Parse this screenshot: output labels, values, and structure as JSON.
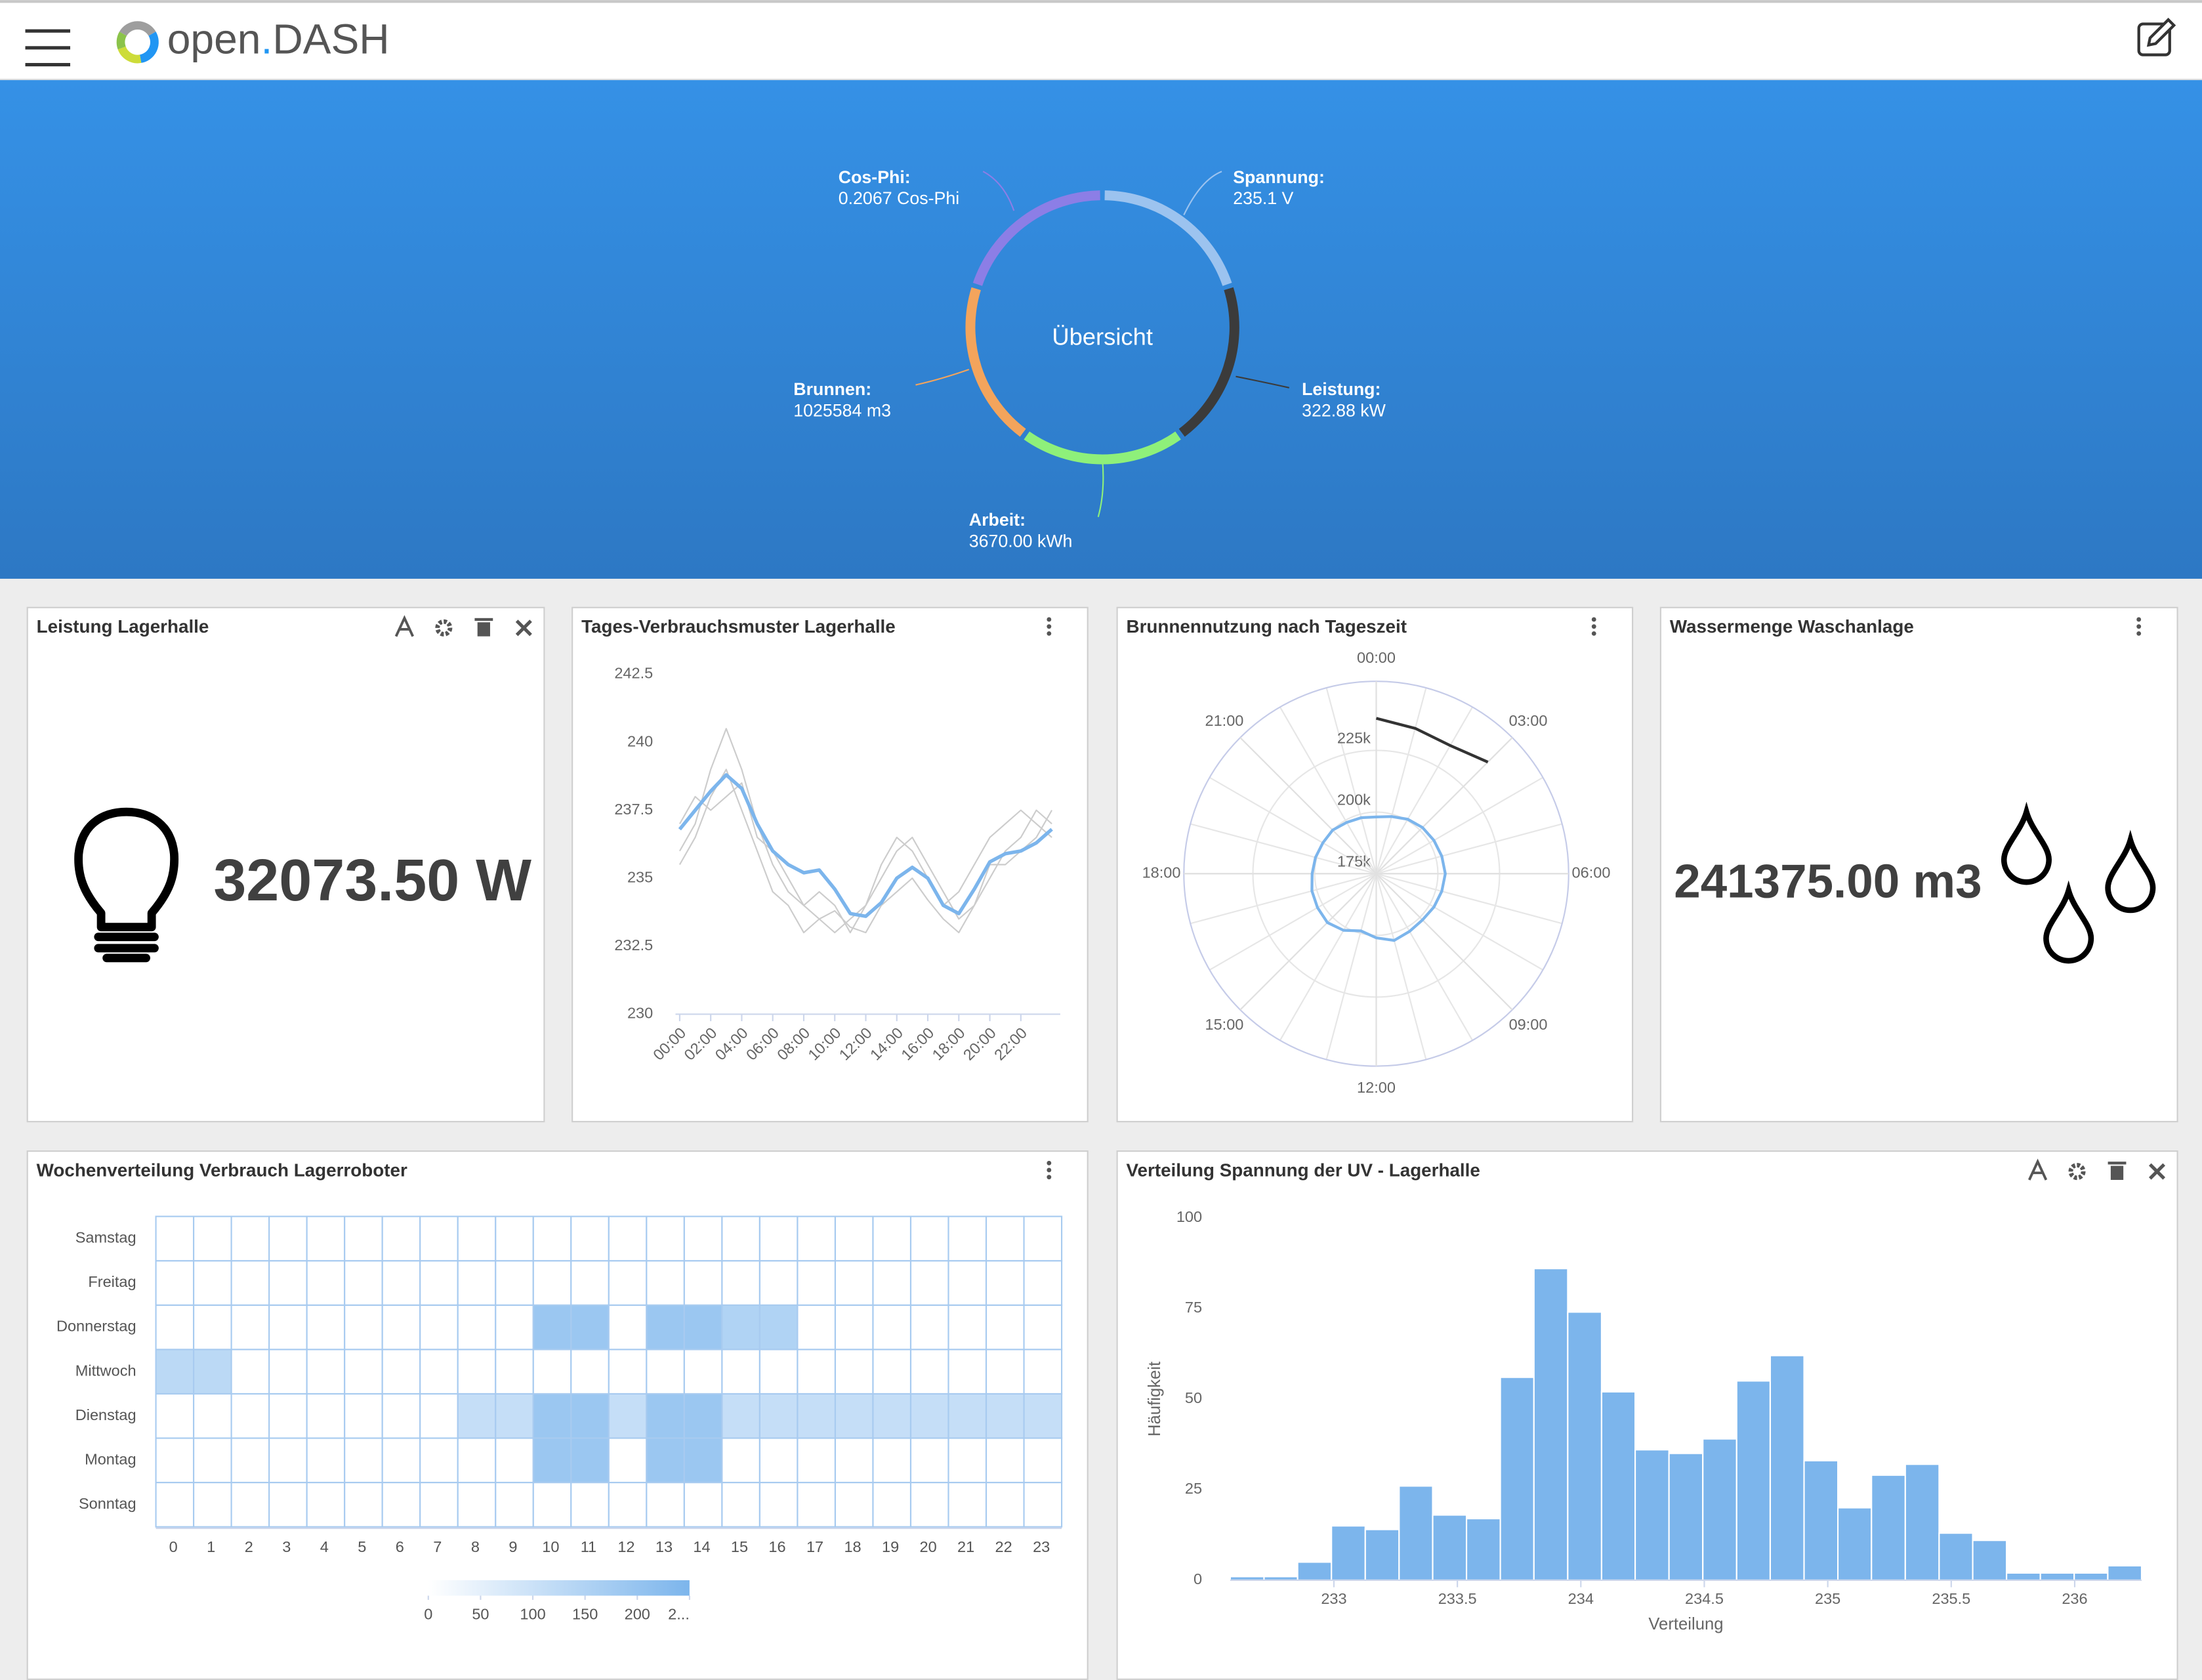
{
  "header": {
    "brand": {
      "name": "open",
      "dot": ".",
      "suffix": "DASH"
    }
  },
  "overview": {
    "title": "Übersicht",
    "items": [
      {
        "label": "Spannung:",
        "value": "235.1 V",
        "color": "#9cc3ef"
      },
      {
        "label": "Leistung:",
        "value": "322.88 kW",
        "color": "#3b3b3b"
      },
      {
        "label": "Arbeit:",
        "value": "3670.00 kWh",
        "color": "#8ef07a"
      },
      {
        "label": "Brunnen:",
        "value": "1025584 m3",
        "color": "#f3a45c"
      },
      {
        "label": "Cos-Phi:",
        "value": "0.2067 Cos-Phi",
        "color": "#8c7ee6"
      }
    ]
  },
  "widgets": [
    {
      "title": "Leistung Lagerhalle",
      "value": "32073.50 W"
    },
    {
      "title": "Tages-Verbrauchsmuster Lagerhalle",
      "chart": {
        "type": "line",
        "x": [
          0,
          1,
          2,
          3,
          4,
          5,
          6,
          7,
          8,
          9,
          10,
          11,
          12,
          13,
          14,
          15,
          16,
          17,
          18,
          19,
          20,
          21,
          22,
          23,
          24
        ],
        "xlim": [
          0,
          24
        ],
        "xticks": [
          {
            "value": 0,
            "label": "00:00"
          },
          {
            "value": 2,
            "label": "02:00"
          },
          {
            "value": 4,
            "label": "04:00"
          },
          {
            "value": 6,
            "label": "06:00"
          },
          {
            "value": 8,
            "label": "08:00"
          },
          {
            "value": 10,
            "label": "10:00"
          },
          {
            "value": 12,
            "label": "12:00"
          },
          {
            "value": 14,
            "label": "14:00"
          },
          {
            "value": 16,
            "label": "16:00"
          },
          {
            "value": 18,
            "label": "18:00"
          },
          {
            "value": 20,
            "label": "20:00"
          },
          {
            "value": 22,
            "label": "22:00"
          }
        ],
        "ylim": [
          230,
          242.5
        ],
        "yticks": [
          230,
          232.5,
          235,
          237.5,
          240,
          242.5
        ],
        "grid": false,
        "series": [
          {
            "color": "#cccccc",
            "values": [
              236,
              237,
              239,
              240.5,
              239,
              237,
              235.5,
              234.5,
              234,
              233.5,
              233,
              233.5,
              234,
              235.5,
              236.5,
              236,
              235,
              234,
              234.5,
              235.5,
              236.5,
              237,
              237.5,
              237,
              236.5
            ]
          },
          {
            "color": "#cccccc",
            "values": [
              237,
              238,
              237.5,
              238,
              238.5,
              236.5,
              236,
              235,
              234,
              234.5,
              234,
              233,
              234,
              235,
              236,
              236.5,
              235.5,
              234.5,
              233.5,
              234,
              235,
              236,
              236.5,
              237.5,
              237
            ]
          },
          {
            "color": "#cccccc",
            "values": [
              235.5,
              236.5,
              238,
              239,
              237.5,
              236,
              234.5,
              234,
              233,
              233.5,
              233.8,
              233.2,
              233,
              234,
              234.5,
              235,
              234.2,
              233.5,
              233,
              234,
              235.5,
              235.5,
              236,
              236.5,
              237.5
            ]
          },
          {
            "color": "#7cb5ec",
            "values": [
              236.8,
              237.5,
              238.2,
              238.8,
              238.3,
              237,
              236,
              235.5,
              235.2,
              235.3,
              234.6,
              233.7,
              233.6,
              234.1,
              235,
              235.4,
              235,
              234,
              233.7,
              234.6,
              235.6,
              235.9,
              236,
              236.3,
              236.8
            ]
          }
        ]
      }
    },
    {
      "title": "Brunnennutzung nach Tageszeit",
      "chart": {
        "type": "polar",
        "thetalim": [
          0,
          24
        ],
        "thetaticks": [
          {
            "value": 0,
            "label": "00:00"
          },
          {
            "value": 3,
            "label": "03:00"
          },
          {
            "value": 6,
            "label": "06:00"
          },
          {
            "value": 9,
            "label": "09:00"
          },
          {
            "value": 12,
            "label": "12:00"
          },
          {
            "value": 15,
            "label": "15:00"
          },
          {
            "value": 18,
            "label": "18:00"
          },
          {
            "value": 21,
            "label": "21:00"
          }
        ],
        "rlim": [
          175000,
          253000
        ],
        "rticks": [
          {
            "value": 175000,
            "label": "175k"
          },
          {
            "value": 200000,
            "label": "200k"
          },
          {
            "value": 225000,
            "label": "225k"
          }
        ],
        "series": [
          {
            "color": "#7cb5ec",
            "closed": true,
            "x": [
              0,
              1,
              2,
              3,
              4,
              5,
              6,
              7,
              8,
              9,
              10,
              11,
              12,
              13,
              14,
              15,
              16,
              17,
              18,
              19,
              20,
              21,
              22,
              23
            ],
            "values": [
              198000,
              199000,
              200500,
              201500,
              202000,
              202500,
              203000,
              202500,
              202000,
              201500,
              202000,
              203000,
              201000,
              199000,
              201500,
              203000,
              202500,
              202000,
              201000,
              200500,
              200000,
              200000,
              199000,
              198500
            ]
          },
          {
            "color": "#333333",
            "closed": false,
            "x": [
              0,
              1,
              2,
              3
            ],
            "values": [
              238000,
              236000,
              235000,
              239000
            ]
          }
        ]
      }
    },
    {
      "title": "Wassermenge Waschanlage",
      "value": "241375.00 m3"
    },
    {
      "title": "Wochenverteilung Verbrauch Lagerroboter",
      "chart": {
        "type": "heatmap",
        "x": [
          0,
          1,
          2,
          3,
          4,
          5,
          6,
          7,
          8,
          9,
          10,
          11,
          12,
          13,
          14,
          15,
          16,
          17,
          18,
          19,
          20,
          21,
          22,
          23
        ],
        "y": [
          "Sonntag",
          "Montag",
          "Dienstag",
          "Mittwoch",
          "Donnerstag",
          "Freitag",
          "Samstag"
        ],
        "values": [
          [
            0,
            0,
            0,
            0,
            0,
            0,
            0,
            0,
            0,
            0,
            0,
            0,
            0,
            0,
            0,
            0,
            0,
            0,
            0,
            0,
            0,
            0,
            0,
            0
          ],
          [
            0,
            0,
            0,
            0,
            0,
            0,
            0,
            0,
            0,
            0,
            190,
            190,
            0,
            190,
            190,
            0,
            0,
            0,
            0,
            0,
            0,
            0,
            0,
            0
          ],
          [
            0,
            0,
            0,
            0,
            0,
            0,
            0,
            0,
            110,
            110,
            190,
            190,
            110,
            190,
            190,
            110,
            110,
            110,
            110,
            110,
            110,
            110,
            110,
            110
          ],
          [
            130,
            130,
            0,
            0,
            0,
            0,
            0,
            0,
            0,
            0,
            0,
            0,
            0,
            0,
            0,
            0,
            0,
            0,
            0,
            0,
            0,
            0,
            0,
            0
          ],
          [
            0,
            0,
            0,
            0,
            0,
            0,
            0,
            0,
            0,
            0,
            190,
            190,
            0,
            190,
            190,
            150,
            150,
            0,
            0,
            0,
            0,
            0,
            0,
            0
          ],
          [
            0,
            0,
            0,
            0,
            0,
            0,
            0,
            0,
            0,
            0,
            0,
            0,
            0,
            0,
            0,
            0,
            0,
            0,
            0,
            0,
            0,
            0,
            0,
            0
          ],
          [
            0,
            0,
            0,
            0,
            0,
            0,
            0,
            0,
            0,
            0,
            0,
            0,
            0,
            0,
            0,
            0,
            0,
            0,
            0,
            0,
            0,
            0,
            0,
            0
          ]
        ],
        "color": "#7cb5ec",
        "colorlim": [
          0,
          250
        ],
        "colorticks": [
          0,
          50,
          100,
          150,
          200,
          {
            "value": 250,
            "label": "2..."
          }
        ]
      }
    },
    {
      "title": "Verteilung Spannung der UV - Lagerhalle",
      "chart": {
        "type": "histogram",
        "bins": [
          232.58,
          232.717,
          232.853,
          232.99,
          233.127,
          233.264,
          233.4,
          233.537,
          233.674,
          233.81,
          233.947,
          234.084,
          234.22,
          234.357,
          234.494,
          234.631,
          234.767,
          234.904,
          235.041,
          235.177,
          235.314,
          235.451,
          235.587,
          235.724,
          235.861,
          235.998,
          236.134,
          236.271
        ],
        "values": [
          1,
          1,
          5,
          15,
          14,
          26,
          18,
          17,
          56,
          86,
          74,
          52,
          36,
          35,
          39,
          55,
          62,
          33,
          20,
          29,
          32,
          13,
          11,
          2,
          2,
          2,
          4
        ],
        "xlim": [
          232.58,
          236.271
        ],
        "xticks": [
          233,
          233.5,
          234,
          234.5,
          235,
          235.5,
          236
        ],
        "ylim": [
          0,
          100
        ],
        "yticks": [
          0,
          25,
          50,
          75,
          100
        ],
        "xlabel": "Verteilung",
        "ylabel": "Häufigkeit",
        "color": "#7cb5ec"
      }
    }
  ]
}
